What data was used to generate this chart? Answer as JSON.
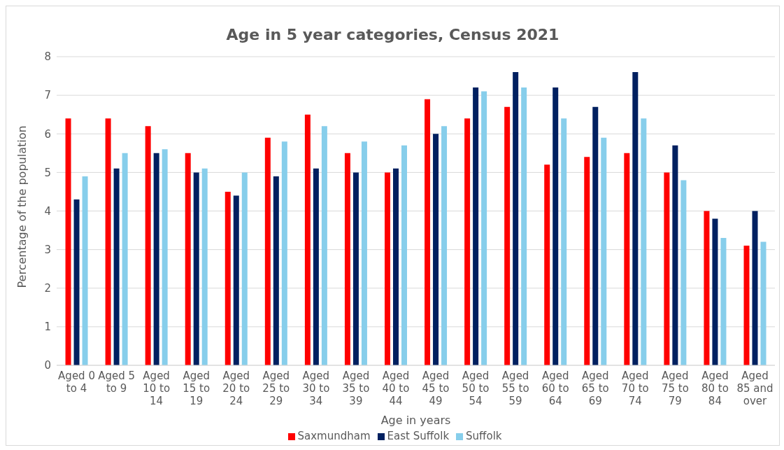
{
  "chart_data": {
    "type": "bar",
    "title": "Age in 5 year categories, Census 2021",
    "xlabel": "Age in years",
    "ylabel": "Percentage of the population",
    "categories": [
      "Aged 0 to 4",
      "Aged 5 to 9",
      "Aged 10 to 14",
      "Aged 15 to 19",
      "Aged 20 to 24",
      "Aged 25 to 29",
      "Aged 30 to 34",
      "Aged 35 to 39",
      "Aged 40 to 44",
      "Aged 45 to 49",
      "Aged 50 to 54",
      "Aged 55 to 59",
      "Aged 60 to 64",
      "Aged 65 to 69",
      "Aged 70 to 74",
      "Aged 75 to 79",
      "Aged 80 to 84",
      "Aged 85 and over"
    ],
    "series": [
      {
        "name": "Saxmundham",
        "color": "#ff0000",
        "values": [
          6.4,
          6.4,
          6.2,
          5.5,
          4.5,
          5.9,
          6.5,
          5.5,
          5.0,
          6.9,
          6.4,
          6.7,
          5.2,
          5.4,
          5.5,
          5.0,
          4.0,
          3.1
        ]
      },
      {
        "name": "East Suffolk",
        "color": "#002060",
        "values": [
          4.3,
          5.1,
          5.5,
          5.0,
          4.4,
          4.9,
          5.1,
          5.0,
          5.1,
          6.0,
          7.2,
          7.6,
          7.2,
          6.7,
          7.6,
          5.7,
          3.8,
          4.0
        ]
      },
      {
        "name": "Suffolk",
        "color": "#87ceeb",
        "values": [
          4.9,
          5.5,
          5.6,
          5.1,
          5.0,
          5.8,
          6.2,
          5.8,
          5.7,
          6.2,
          7.1,
          7.2,
          6.4,
          5.9,
          6.4,
          4.8,
          3.3,
          3.2
        ]
      }
    ],
    "ylim": [
      0,
      8
    ],
    "yticks": [
      0,
      1,
      2,
      3,
      4,
      5,
      6,
      7,
      8
    ],
    "grid": "y",
    "legend": "bottom"
  }
}
